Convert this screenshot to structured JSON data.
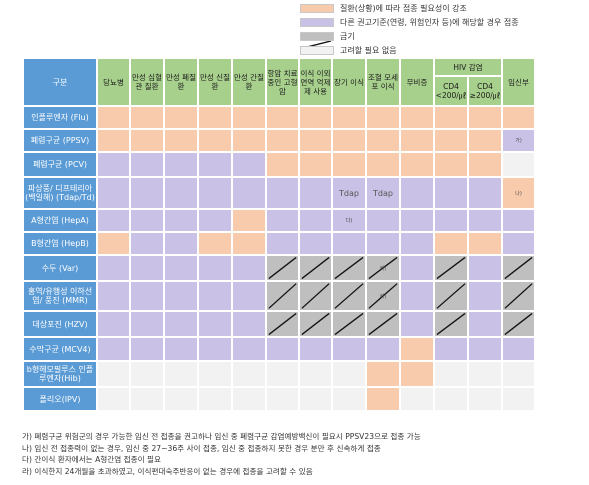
{
  "legend": [
    {
      "label": "질환(상황)에 따라 접종 필요성이 강조",
      "color": "#f8cbad"
    },
    {
      "label": "다른 권고기준(연령, 위험인자 등)에 해당할 경우 접종",
      "color": "#c9c2e6"
    },
    {
      "label": "금기",
      "color": "#bfbfbf"
    },
    {
      "label": "고려할 필요 없음",
      "color": "#f2f2f2"
    }
  ],
  "table": {
    "corner_label": "구분",
    "hiv_group_label": "HIV 감염",
    "columns": [
      "당뇨병",
      "만성 심혈관 질환",
      "만성 폐질환",
      "만성 신질환",
      "만성 간질환",
      "항암 치료 중인 고형암",
      "이식 이외 면역 억제제 사용",
      "장기 이식",
      "조혈 모세포 이식",
      "무비증",
      "CD4 <200/㎕",
      "CD4 ≥200/㎕",
      "임신부"
    ],
    "rows": [
      {
        "label": "인플루엔자 (Flu)",
        "cells": [
          "rec",
          "rec",
          "rec",
          "rec",
          "rec",
          "rec",
          "rec",
          "rec",
          "rec",
          "rec",
          "rec",
          "rec",
          "rec"
        ],
        "notes": {}
      },
      {
        "label": "폐렴구균 (PPSV)",
        "cells": [
          "rec",
          "rec",
          "rec",
          "rec",
          "rec",
          "rec",
          "rec",
          "rec",
          "rec",
          "rec",
          "rec",
          "rec",
          "other"
        ],
        "notes": {
          "12": "가)"
        }
      },
      {
        "label": "폐렴구균 (PCV)",
        "cells": [
          "other",
          "other",
          "other",
          "other",
          "other",
          "rec",
          "rec",
          "rec",
          "rec",
          "rec",
          "rec",
          "rec",
          "none"
        ],
        "notes": {}
      },
      {
        "label": "파상풍/ 디프테리아 (백일해) (Tdap/Td)",
        "cells": [
          "other",
          "other",
          "other",
          "other",
          "other",
          "other",
          "other",
          "other",
          "other",
          "other",
          "other",
          "other",
          "rec"
        ],
        "notes": {
          "7": "Tdap",
          "8": "Tdap",
          "12": "나)"
        }
      },
      {
        "label": "A형간염 (HepA)",
        "cells": [
          "other",
          "other",
          "other",
          "other",
          "rec",
          "other",
          "other",
          "other",
          "other",
          "other",
          "other",
          "other",
          "other"
        ],
        "notes": {
          "7": "다)"
        }
      },
      {
        "label": "B형간염 (HepB)",
        "cells": [
          "rec",
          "other",
          "other",
          "rec",
          "rec",
          "other",
          "other",
          "other",
          "other",
          "other",
          "rec",
          "rec",
          "other"
        ],
        "notes": {}
      },
      {
        "label": "수두 (Var)",
        "cells": [
          "other",
          "other",
          "other",
          "other",
          "other",
          "contra",
          "contra",
          "contra",
          "contra",
          "other",
          "contra",
          "other",
          "contra"
        ],
        "notes": {
          "8": "라)"
        }
      },
      {
        "label": "홍역/유행성 이하선염/ 풍진 (MMR)",
        "cells": [
          "other",
          "other",
          "other",
          "other",
          "other",
          "contra",
          "contra",
          "contra",
          "contra",
          "other",
          "contra",
          "other",
          "contra"
        ],
        "notes": {
          "8": "라)"
        }
      },
      {
        "label": "대상포진 (HZV)",
        "cells": [
          "other",
          "other",
          "other",
          "other",
          "other",
          "contra",
          "contra",
          "contra",
          "contra",
          "other",
          "contra",
          "other",
          "contra"
        ],
        "notes": {}
      },
      {
        "label": "수막구균 (MCV4)",
        "cells": [
          "other",
          "other",
          "other",
          "other",
          "other",
          "other",
          "other",
          "other",
          "other",
          "rec",
          "other",
          "other",
          "other"
        ],
        "notes": {}
      },
      {
        "label": "b형헤모필루스 인플루엔자(Hib)",
        "cells": [
          "none",
          "none",
          "none",
          "none",
          "none",
          "none",
          "none",
          "none",
          "rec",
          "rec",
          "none",
          "none",
          "none"
        ],
        "notes": {}
      },
      {
        "label": "폴리오(IPV)",
        "cells": [
          "none",
          "none",
          "none",
          "none",
          "none",
          "none",
          "none",
          "none",
          "rec",
          "none",
          "none",
          "none",
          "none"
        ],
        "notes": {}
      }
    ]
  },
  "notes": [
    "가) 폐렴구균 위험군의 경우 가능한 임신 전 접종을 권고하나 임신 중 폐렴구균 감염예방백신이 필요시 PPSV23으로 접종 가능",
    "나) 임신 전 접종력이 없는 경우, 임신 중 27~36주 사이 접종, 임신 중 접종하지 못한 경우 분만 후 신속하게 접종",
    "다) 간이식 환자에서는 A형간염 접종이 필요",
    "라) 이식한지 24개월을 초과하였고, 이식편대숙주반응이 없는 경우에 접종을 고려할 수 있음"
  ]
}
